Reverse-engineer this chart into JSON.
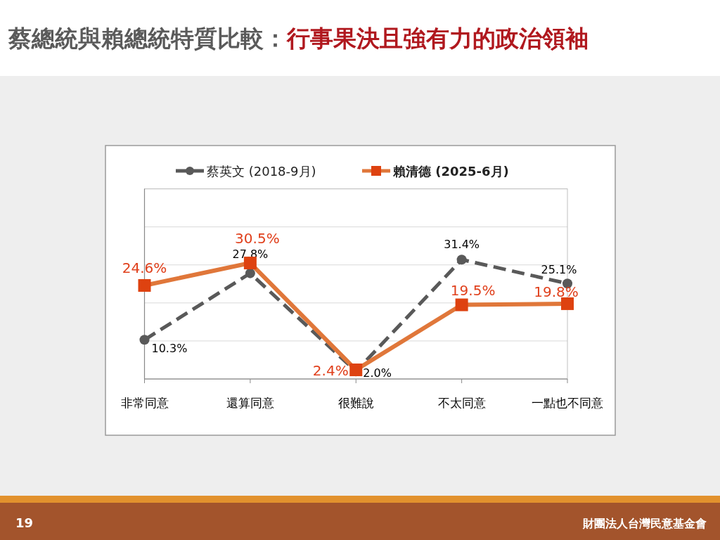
{
  "chart_data": {
    "type": "line",
    "title": "蔡總統與賴總統特質比較：",
    "subtitle": "行事果決且強有力的政治領袖",
    "categories": [
      "非常同意",
      "還算同意",
      "很難說",
      "不太同意",
      "一點也不同意"
    ],
    "series": [
      {
        "name": "蔡英文 (2018-9月)",
        "color": "#595959",
        "marker": "circle",
        "line_style": "dashed",
        "values": [
          10.3,
          27.8,
          2.0,
          31.4,
          25.1
        ],
        "value_labels": [
          "10.3%",
          "27.8%",
          "2.0%",
          "31.4%",
          "25.1%"
        ]
      },
      {
        "name": "賴清德 (2025-6月)",
        "color": "#e0773a",
        "marker": "square",
        "line_style": "solid",
        "values": [
          24.6,
          30.5,
          2.4,
          19.5,
          19.8
        ],
        "value_labels": [
          "24.6%",
          "30.5%",
          "2.4%",
          "19.5%",
          "19.8%"
        ]
      }
    ],
    "ylim": [
      0,
      50
    ],
    "yticks": [
      {
        "value": 0,
        "label": null
      },
      {
        "value": 10,
        "label": null
      },
      {
        "value": 20,
        "label": null
      },
      {
        "value": 30,
        "label": null
      },
      {
        "value": 40,
        "label": null
      },
      {
        "value": 50,
        "label": null
      }
    ],
    "grid": "y",
    "legend": "top",
    "tick_labels": "x",
    "annotations": [
      "19",
      "財團法人台灣民意基金會"
    ]
  }
}
